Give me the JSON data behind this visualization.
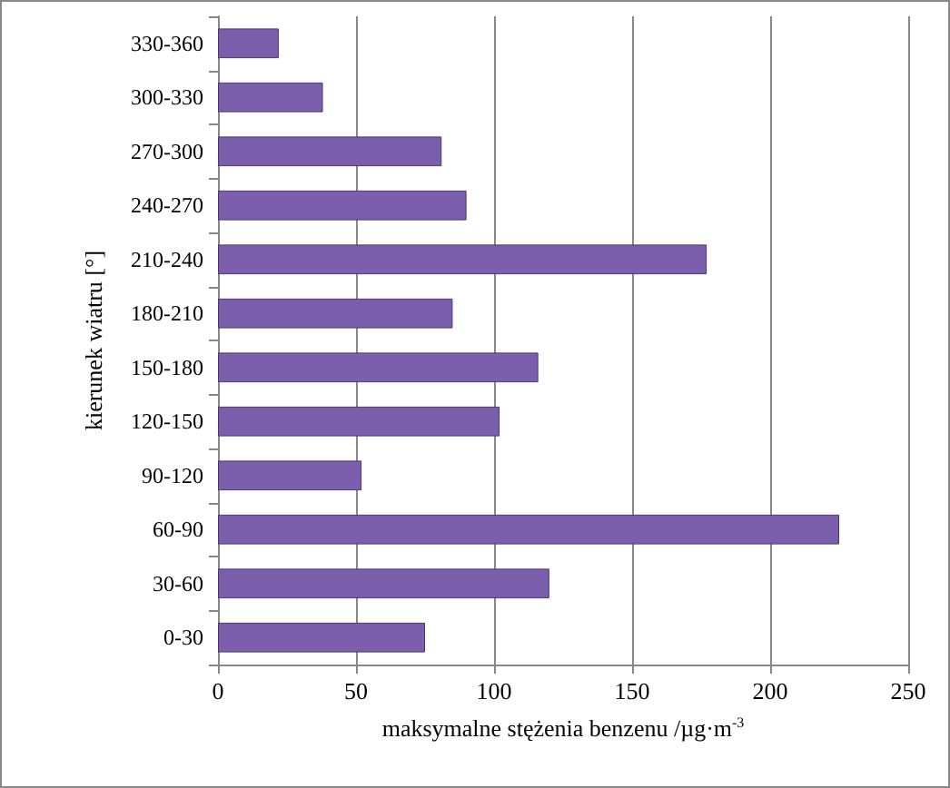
{
  "chart_data": {
    "type": "bar",
    "orientation": "horizontal",
    "categories": [
      "330-360",
      "300-330",
      "270-300",
      "240-270",
      "210-240",
      "180-210",
      "150-180",
      "120-150",
      "90-120",
      "60-90",
      "30-60",
      "0-30"
    ],
    "values": [
      22,
      38,
      81,
      90,
      177,
      85,
      116,
      102,
      52,
      225,
      120,
      75
    ],
    "color": "#7b5fac",
    "xlabel": "maksymalne stężenia benzenu /µg·m$^{-3}$",
    "ylabel": "kierunek wiatru [°]",
    "xlim": [
      0,
      250
    ],
    "xticks": [
      0,
      50,
      100,
      150,
      200,
      250
    ],
    "grid": "x"
  }
}
